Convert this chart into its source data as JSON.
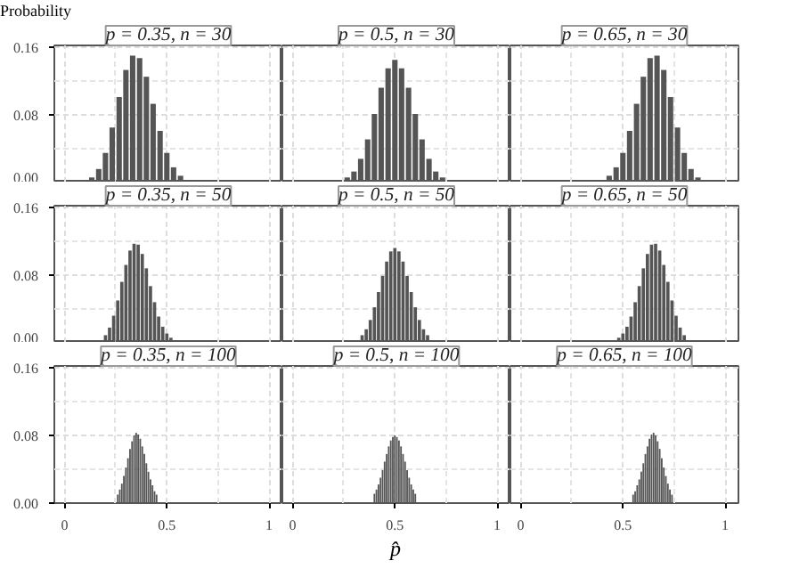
{
  "chart_data": [
    {
      "type": "bar",
      "title": "p = 0.35, n = 30",
      "ylabel": "Probability",
      "color": "#555555",
      "grid": true,
      "tick_labels": "y",
      "xlim": [
        -0.05,
        1.065
      ],
      "ylim": [
        0,
        0.162
      ],
      "yticks": [
        {
          "value": 0,
          "label": "0.00"
        },
        {
          "value": 0.08,
          "label": "0.08"
        },
        {
          "value": 0.16,
          "label": "0.16"
        }
      ],
      "x": [
        0.1,
        0.133,
        0.167,
        0.2,
        0.233,
        0.267,
        0.3,
        0.333,
        0.367,
        0.4,
        0.433,
        0.467,
        0.5,
        0.533,
        0.567,
        0.6,
        0.633
      ],
      "values": [
        0.002,
        0.006,
        0.016,
        0.035,
        0.065,
        0.101,
        0.133,
        0.15,
        0.147,
        0.125,
        0.093,
        0.061,
        0.035,
        0.018,
        0.008,
        0.003,
        0.001
      ]
    },
    {
      "type": "bar",
      "title": "p = 0.5, n = 30",
      "color": "#555555",
      "grid": true,
      "tick_labels": false,
      "xlim": [
        -0.05,
        1.065
      ],
      "ylim": [
        0,
        0.162
      ],
      "x": [
        0.267,
        0.3,
        0.333,
        0.367,
        0.4,
        0.433,
        0.467,
        0.5,
        0.533,
        0.567,
        0.6,
        0.633,
        0.667,
        0.7,
        0.733
      ],
      "values": [
        0.006,
        0.013,
        0.028,
        0.051,
        0.081,
        0.112,
        0.135,
        0.145,
        0.135,
        0.112,
        0.081,
        0.051,
        0.028,
        0.013,
        0.006
      ]
    },
    {
      "type": "bar",
      "title": "p = 0.65, n = 30",
      "color": "#555555",
      "grid": true,
      "tick_labels": false,
      "xlim": [
        -0.05,
        1.065
      ],
      "ylim": [
        0,
        0.162
      ],
      "x": [
        0.367,
        0.4,
        0.433,
        0.467,
        0.5,
        0.533,
        0.567,
        0.6,
        0.633,
        0.667,
        0.7,
        0.733,
        0.767,
        0.8,
        0.833,
        0.867,
        0.9
      ],
      "values": [
        0.001,
        0.003,
        0.008,
        0.018,
        0.035,
        0.061,
        0.093,
        0.125,
        0.147,
        0.15,
        0.133,
        0.101,
        0.065,
        0.035,
        0.016,
        0.006,
        0.002
      ]
    },
    {
      "type": "bar",
      "title": "p = 0.35, n = 50",
      "color": "#555555",
      "grid": true,
      "tick_labels": "y",
      "xlim": [
        -0.05,
        1.065
      ],
      "ylim": [
        0,
        0.162
      ],
      "yticks": [
        {
          "value": 0,
          "label": "0.00"
        },
        {
          "value": 0.08,
          "label": "0.08"
        },
        {
          "value": 0.16,
          "label": "0.16"
        }
      ],
      "x": [
        0.2,
        0.22,
        0.24,
        0.26,
        0.28,
        0.3,
        0.32,
        0.34,
        0.36,
        0.38,
        0.4,
        0.42,
        0.44,
        0.46,
        0.48,
        0.5,
        0.52
      ],
      "values": [
        0.009,
        0.018,
        0.032,
        0.05,
        0.072,
        0.092,
        0.109,
        0.117,
        0.116,
        0.105,
        0.088,
        0.067,
        0.048,
        0.031,
        0.019,
        0.011,
        0.006
      ]
    },
    {
      "type": "bar",
      "title": "p = 0.5, n = 50",
      "color": "#555555",
      "grid": true,
      "tick_labels": false,
      "xlim": [
        -0.05,
        1.065
      ],
      "ylim": [
        0,
        0.162
      ],
      "x": [
        0.34,
        0.36,
        0.38,
        0.4,
        0.42,
        0.44,
        0.46,
        0.48,
        0.5,
        0.52,
        0.54,
        0.56,
        0.58,
        0.6,
        0.62,
        0.64,
        0.66
      ],
      "values": [
        0.009,
        0.016,
        0.027,
        0.042,
        0.06,
        0.079,
        0.096,
        0.108,
        0.112,
        0.108,
        0.096,
        0.079,
        0.06,
        0.042,
        0.027,
        0.016,
        0.009
      ]
    },
    {
      "type": "bar",
      "title": "p = 0.65, n = 50",
      "color": "#555555",
      "grid": true,
      "tick_labels": false,
      "xlim": [
        -0.05,
        1.065
      ],
      "ylim": [
        0,
        0.162
      ],
      "x": [
        0.48,
        0.5,
        0.52,
        0.54,
        0.56,
        0.58,
        0.6,
        0.62,
        0.64,
        0.66,
        0.68,
        0.7,
        0.72,
        0.74,
        0.76,
        0.78,
        0.8
      ],
      "values": [
        0.006,
        0.011,
        0.019,
        0.031,
        0.048,
        0.067,
        0.088,
        0.105,
        0.116,
        0.117,
        0.109,
        0.092,
        0.072,
        0.05,
        0.032,
        0.018,
        0.009
      ]
    },
    {
      "type": "bar",
      "title": "p = 0.35, n = 100",
      "color": "#555555",
      "grid": true,
      "xlim": [
        -0.05,
        1.065
      ],
      "ylim": [
        0,
        0.162
      ],
      "xticks": [
        0,
        0.5,
        1
      ],
      "yticks": [
        {
          "value": 0,
          "label": "0.00"
        },
        {
          "value": 0.08,
          "label": "0.08"
        },
        {
          "value": 0.16,
          "label": "0.16"
        }
      ],
      "x": [
        0.26,
        0.27,
        0.28,
        0.29,
        0.3,
        0.31,
        0.32,
        0.33,
        0.34,
        0.35,
        0.36,
        0.37,
        0.38,
        0.39,
        0.4,
        0.41,
        0.42,
        0.43,
        0.44,
        0.45
      ],
      "values": [
        0.01,
        0.016,
        0.023,
        0.032,
        0.042,
        0.053,
        0.064,
        0.073,
        0.08,
        0.083,
        0.081,
        0.076,
        0.067,
        0.058,
        0.047,
        0.037,
        0.028,
        0.021,
        0.014,
        0.01
      ]
    },
    {
      "type": "bar",
      "title": "p = 0.5, n = 100",
      "xlabel": "p̂",
      "color": "#555555",
      "grid": true,
      "tick_labels": "x",
      "xlim": [
        -0.05,
        1.065
      ],
      "ylim": [
        0,
        0.162
      ],
      "xticks": [
        0,
        0.5,
        1
      ],
      "x": [
        0.4,
        0.41,
        0.42,
        0.43,
        0.44,
        0.45,
        0.46,
        0.47,
        0.48,
        0.49,
        0.5,
        0.51,
        0.52,
        0.53,
        0.54,
        0.55,
        0.56,
        0.57,
        0.58,
        0.59,
        0.6
      ],
      "values": [
        0.011,
        0.016,
        0.022,
        0.03,
        0.039,
        0.049,
        0.058,
        0.067,
        0.074,
        0.078,
        0.08,
        0.078,
        0.074,
        0.067,
        0.058,
        0.049,
        0.039,
        0.03,
        0.022,
        0.016,
        0.011
      ]
    },
    {
      "type": "bar",
      "title": "p = 0.65, n = 100",
      "color": "#555555",
      "grid": true,
      "tick_labels": "x",
      "xlim": [
        -0.05,
        1.065
      ],
      "ylim": [
        0,
        0.162
      ],
      "xticks": [
        0,
        0.5,
        1
      ],
      "x": [
        0.55,
        0.56,
        0.57,
        0.58,
        0.59,
        0.6,
        0.61,
        0.62,
        0.63,
        0.64,
        0.65,
        0.66,
        0.67,
        0.68,
        0.69,
        0.7,
        0.71,
        0.72,
        0.73,
        0.74
      ],
      "values": [
        0.01,
        0.014,
        0.021,
        0.028,
        0.037,
        0.047,
        0.058,
        0.067,
        0.076,
        0.081,
        0.083,
        0.08,
        0.073,
        0.064,
        0.053,
        0.042,
        0.032,
        0.023,
        0.016,
        0.01
      ]
    }
  ]
}
